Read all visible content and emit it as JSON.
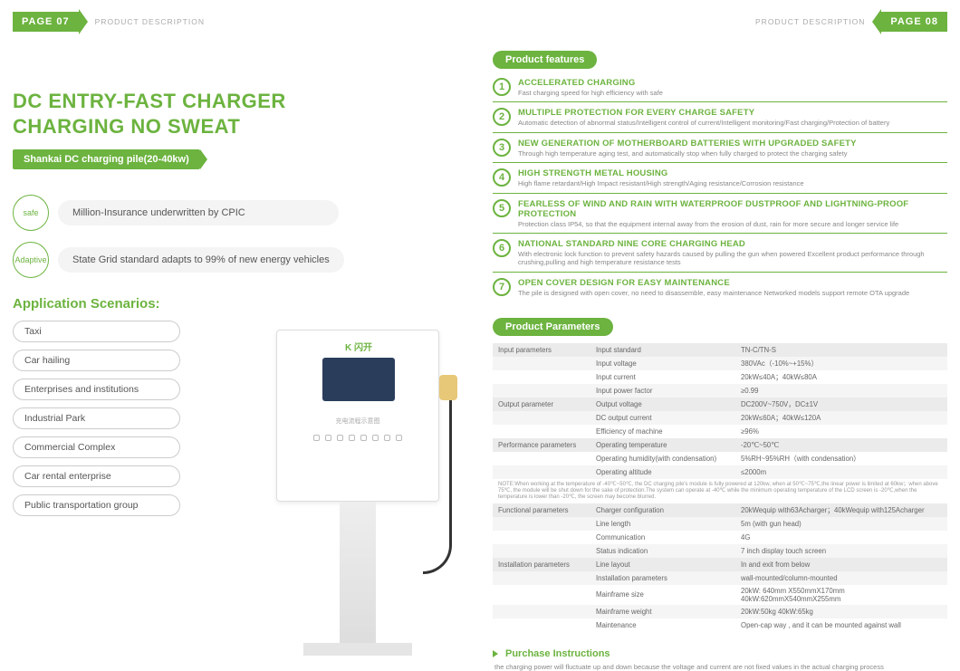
{
  "header": {
    "left_page": "PAGE 07",
    "right_page": "PAGE 08",
    "desc": "PRODUCT DESCRIPTION"
  },
  "left": {
    "title_l1": "DC ENTRY-FAST CHARGER",
    "title_l2": "CHARGING NO SWEAT",
    "subtitle": "Shankai DC charging pile(20-40kw)",
    "badges": [
      {
        "circle": "safe",
        "text": "Million-Insurance underwritten by CPIC"
      },
      {
        "circle": "Adaptive",
        "text": "State Grid standard adapts to 99% of new energy vehicles"
      }
    ],
    "scen_title": "Application Scenarios:",
    "scenarios": [
      "Taxi",
      "Car hailing",
      "Enterprises and institutions",
      "Industrial Park",
      "Commercial Complex",
      "Car rental enterprise",
      "Public transportation group"
    ],
    "charger": {
      "logo": "K 闪开",
      "label": "充电流程示意图"
    }
  },
  "features_title": "Product features",
  "features": [
    {
      "n": "1",
      "t": "ACCELERATED CHARGING",
      "d": "Fast charging speed for high efficiency with safe"
    },
    {
      "n": "2",
      "t": "MULTIPLE PROTECTION FOR EVERY CHARGE SAFETY",
      "d": "Automatic detection of abnormal status/Intelligent control of current/Intelligent monitoring/Fast charging/Protection of battery"
    },
    {
      "n": "3",
      "t": "NEW GENERATION OF MOTHERBOARD BATTERIES WITH UPGRADED SAFETY",
      "d": "Through high temperature aging test, and automatically stop when fully charged to protect the charging safety"
    },
    {
      "n": "4",
      "t": "HIGH STRENGTH METAL HOUSING",
      "d": "High flame retardant/High Impact resistant/High strength/Aging resistance/Corrosion resistance"
    },
    {
      "n": "5",
      "t": "FEARLESS OF WIND AND RAIN WITH WATERPROOF DUSTPROOF AND LIGHTNING-PROOF PROTECTION",
      "d": "Protection class IP54, so that the equipment internal away from the erosion of dust, rain for more secure and longer service life"
    },
    {
      "n": "6",
      "t": "NATIONAL STANDARD NINE CORE CHARGING HEAD",
      "d": "With electronic lock function to prevent safety hazards caused by pulling the gun when powered Excellent product performance through crushing,pulling and high temperature resistance tests"
    },
    {
      "n": "7",
      "t": "OPEN COVER DESIGN FOR EASY MAINTENANCE",
      "d": "The pile is designed with open cover, no need to disassemble, easy maintenance Networked models support remote OTA upgrade"
    }
  ],
  "params_title": "Product Parameters",
  "params": [
    {
      "g": "Input parameters",
      "k": "Input standard",
      "v": "TN-C/TN-S",
      "head": true
    },
    {
      "g": "",
      "k": "Input voltage",
      "v": "380VAc（-10%~+15%）"
    },
    {
      "g": "",
      "k": "Input current",
      "v": "20kW≤40A；40kW≤80A"
    },
    {
      "g": "",
      "k": "Input power factor",
      "v": "≥0.99"
    },
    {
      "g": "Output parameter",
      "k": "Output voltage",
      "v": "DC200V~750V，DC±1V",
      "head": true
    },
    {
      "g": "",
      "k": "DC output current",
      "v": "20kW≤60A；40kW≤120A"
    },
    {
      "g": "",
      "k": "Efficiency of machine",
      "v": "≥96%"
    },
    {
      "g": "Performance parameters",
      "k": "Operating temperature",
      "v": "-20℃~50℃",
      "head": true
    },
    {
      "g": "",
      "k": "Operating humidity(with condensation)",
      "v": "5%RH~95%RH（with condensation）"
    },
    {
      "g": "",
      "k": "Operating altitude",
      "v": "≤2000m"
    }
  ],
  "note": "NOTE:When working at the temperature of -40℃~50℃, the DC charging pile's module is fully powered at 120kw, when at 50℃~75℃,the linear power is limited at 60kw；when above 75℃, the module will be shut down for the sake of protection.The system can operate at -40℃ while the minimum operating temperature of the LCD screen is -20℃,when the temperature is lower than -20℃, the screen may become blurred.",
  "params2": [
    {
      "g": "Functional parameters",
      "k": "Charger configuration",
      "v": "20kWequip with63Acharger；40kWequip with125Acharger",
      "head": true
    },
    {
      "g": "",
      "k": "Line length",
      "v": "5m (with gun head)"
    },
    {
      "g": "",
      "k": "Communication",
      "v": "4G"
    },
    {
      "g": "",
      "k": "Status indication",
      "v": "7 inch display touch screen"
    },
    {
      "g": "Installation parameters",
      "k": "Line layout",
      "v": "In and exit from below",
      "head": true
    },
    {
      "g": "",
      "k": "Installation parameters",
      "v": "wall-mounted/column-mounted"
    },
    {
      "g": "",
      "k": "Mainframe size",
      "v": "20kW: 640mm X550mmX170mm  40kW:620mmX540mmX255mm"
    },
    {
      "g": "",
      "k": "Mainframe weight",
      "v": "20kW:50kg  40kW:65kg"
    },
    {
      "g": "",
      "k": "Maintenance",
      "v": "Open-cap way , and it can be mounted against wall"
    }
  ],
  "purchase_title": "Purchase Instructions",
  "purchase_text": "the charging power will fluctuate up and down because the voltage and current are not fixed values in the actual charging process"
}
